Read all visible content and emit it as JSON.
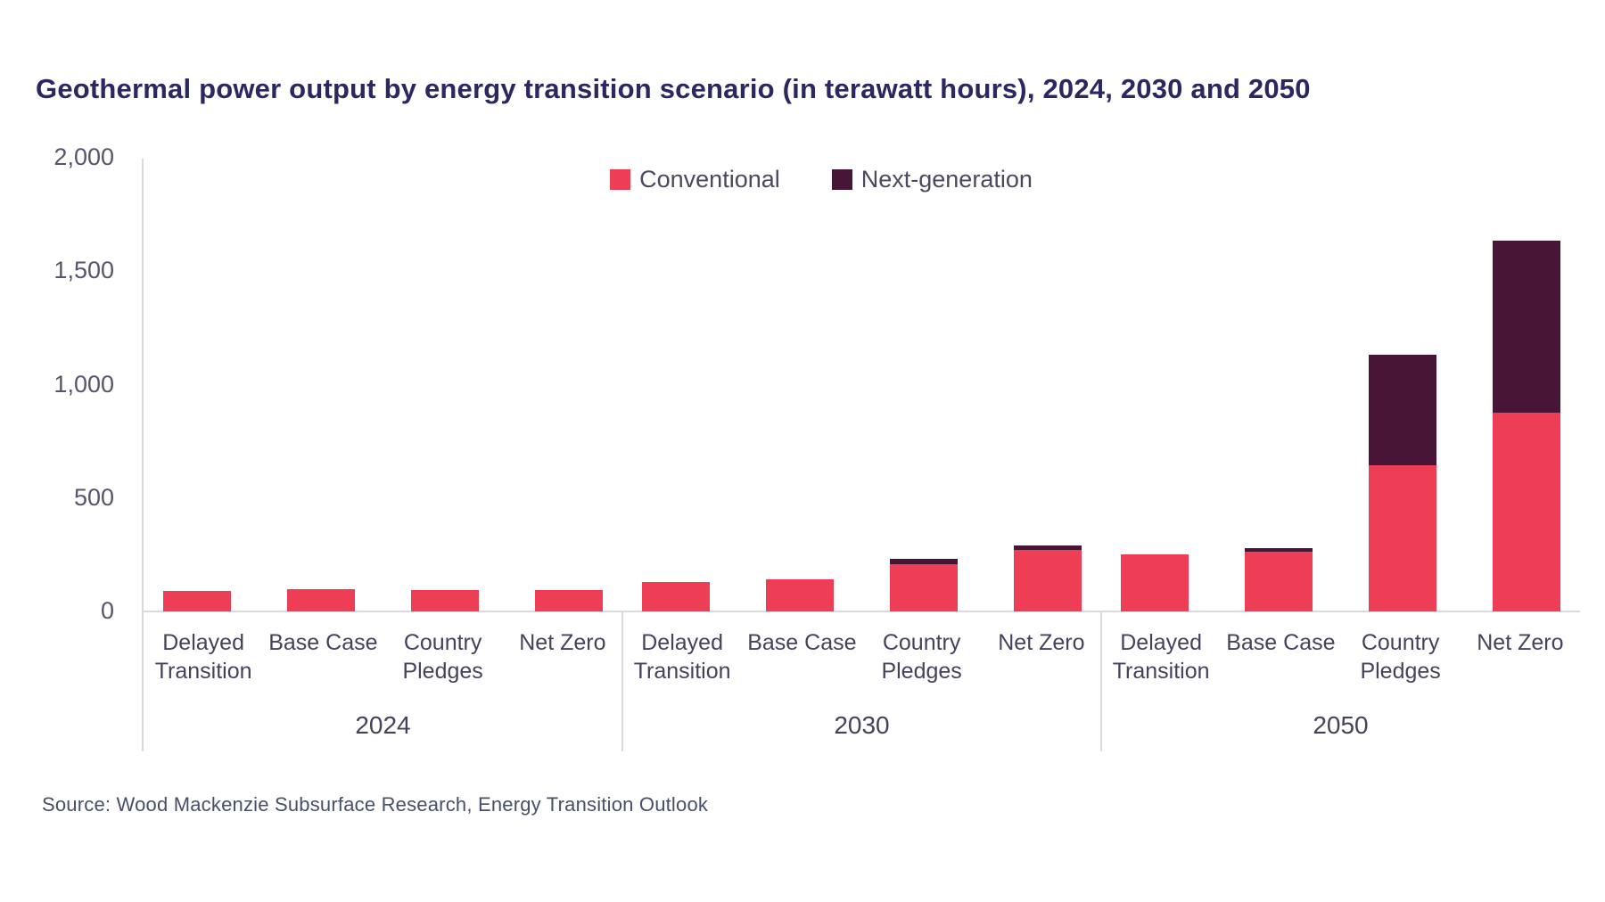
{
  "title": "Geothermal power output by energy transition scenario (in terawatt hours), 2024, 2030 and 2050",
  "source": "Source: Wood Mackenzie Subsurface Research, Energy Transition Outlook",
  "colors": {
    "conventional": "#ee3e56",
    "next_generation": "#471637",
    "title_text": "#2b2761",
    "axis_text": "#55556d",
    "category_text": "#45435c",
    "axis_line": "#d9d9de",
    "source_text": "#475069",
    "background": "#ffffff"
  },
  "chart_data": {
    "type": "bar",
    "stacked": true,
    "title": "Geothermal power output by energy transition scenario (in terawatt hours), 2024, 2030 and 2050",
    "unit": "terawatt hours",
    "ylim": [
      0,
      2000
    ],
    "y_ticks": [
      "2,000",
      "1,500",
      "1,000",
      "500",
      "0"
    ],
    "grid": "off",
    "legend_position": "top-center",
    "legend": [
      {
        "label": "Conventional",
        "color": "#ee3e56"
      },
      {
        "label": "Next-generation",
        "color": "#471637"
      }
    ],
    "groups": [
      {
        "year": "2024",
        "categories": [
          "Delayed Transition",
          "Base Case",
          "Country Pledges",
          "Net Zero"
        ],
        "series": [
          {
            "name": "Conventional",
            "values": [
              90,
              100,
              95,
              95
            ]
          },
          {
            "name": "Next-generation",
            "values": [
              0,
              0,
              0,
              0
            ]
          }
        ]
      },
      {
        "year": "2030",
        "categories": [
          "Delayed Transition",
          "Base Case",
          "Country Pledges",
          "Net Zero"
        ],
        "series": [
          {
            "name": "Conventional",
            "values": [
              130,
              140,
              210,
              270
            ]
          },
          {
            "name": "Next-generation",
            "values": [
              0,
              0,
              20,
              20
            ]
          }
        ]
      },
      {
        "year": "2050",
        "categories": [
          "Delayed Transition",
          "Base Case",
          "Country Pledges",
          "Net Zero"
        ],
        "series": [
          {
            "name": "Conventional",
            "values": [
              250,
              265,
              645,
              875
            ]
          },
          {
            "name": "Next-generation",
            "values": [
              0,
              15,
              485,
              760
            ]
          }
        ]
      }
    ]
  }
}
